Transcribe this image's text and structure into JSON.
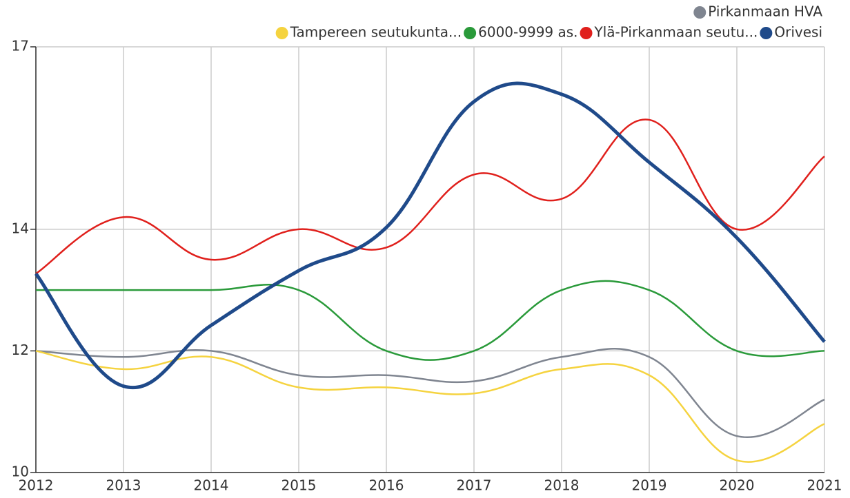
{
  "chart_data": {
    "type": "line",
    "categories": [
      "2012",
      "2013",
      "2014",
      "2015",
      "2016",
      "2017",
      "2018",
      "2019",
      "2020",
      "2021"
    ],
    "series": [
      {
        "name": "Pirkanmaan HVA",
        "color": "#7f8590",
        "values": [
          12.0,
          11.9,
          12.0,
          11.6,
          11.6,
          11.5,
          11.9,
          11.9,
          10.6,
          11.2
        ]
      },
      {
        "name": "Tampereen seutukunta...",
        "color": "#f5d33f",
        "values": [
          12.0,
          11.7,
          11.9,
          11.4,
          11.4,
          11.3,
          11.7,
          11.6,
          10.2,
          10.8
        ]
      },
      {
        "name": "6000-9999 as.",
        "color": "#2a9a3a",
        "values": [
          13.0,
          13.0,
          13.0,
          13.0,
          12.0,
          12.0,
          13.0,
          13.0,
          12.0,
          12.0
        ]
      },
      {
        "name": "Ylä-Pirkanmaan seutu...",
        "color": "#e0201c",
        "values": [
          13.27,
          14.2,
          13.5,
          14.0,
          13.7,
          14.9,
          14.5,
          15.8,
          14.0,
          15.2
        ]
      },
      {
        "name": "Orivesi",
        "color": "#1f4a8a",
        "values": [
          13.27,
          11.42,
          12.42,
          13.32,
          14.03,
          16.1,
          16.22,
          15.1,
          13.86,
          12.15
        ]
      }
    ],
    "ylim": [
      10,
      17
    ],
    "yticks": [
      10,
      12,
      14,
      17
    ],
    "grid": true,
    "legend": "top-right"
  }
}
